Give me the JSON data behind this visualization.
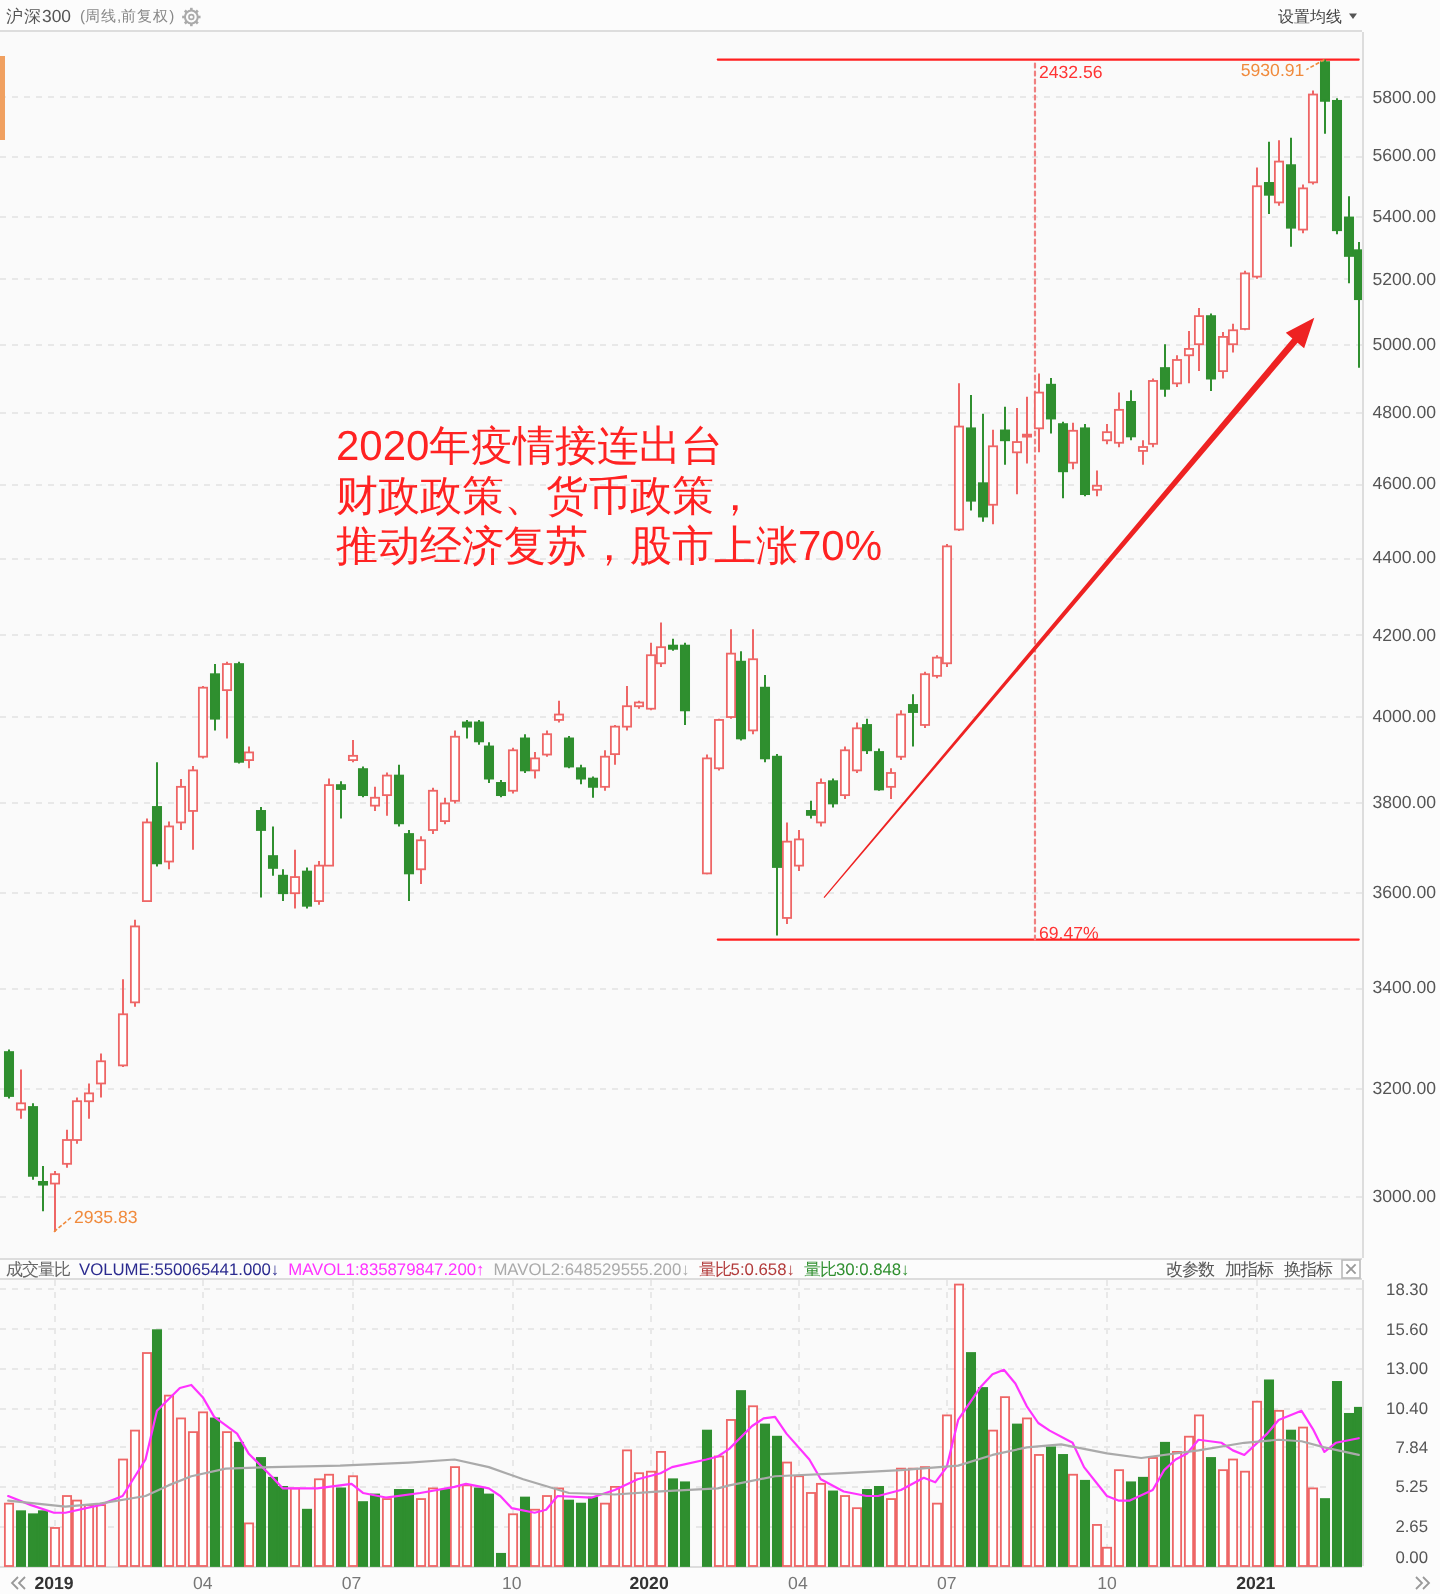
{
  "chart_data": [
    {
      "type": "candlestick",
      "title": "沪深300",
      "subtitle": "(周线,前复权)",
      "x": [
        "2018-12-07",
        "2018-12-14",
        "2018-12-21",
        "2018-12-28",
        "2019-01-04",
        "2019-01-11",
        "2019-01-18",
        "2019-01-25",
        "2019-02-01",
        "2019-02-15",
        "2019-02-22",
        "2019-03-01",
        "2019-03-08",
        "2019-03-15",
        "2019-03-22",
        "2019-03-29",
        "2019-04-05",
        "2019-04-12",
        "2019-04-19",
        "2019-04-26",
        "2019-05-03",
        "2019-05-10",
        "2019-05-17",
        "2019-05-24",
        "2019-05-31",
        "2019-06-07",
        "2019-06-14",
        "2019-06-21",
        "2019-06-28",
        "2019-07-05",
        "2019-07-12",
        "2019-07-19",
        "2019-07-26",
        "2019-08-02",
        "2019-08-09",
        "2019-08-16",
        "2019-08-23",
        "2019-08-30",
        "2019-09-06",
        "2019-09-13",
        "2019-09-20",
        "2019-09-27",
        "2019-10-04",
        "2019-10-11",
        "2019-10-18",
        "2019-10-25",
        "2019-11-01",
        "2019-11-08",
        "2019-11-15",
        "2019-11-22",
        "2019-11-29",
        "2019-12-06",
        "2019-12-13",
        "2019-12-20",
        "2019-12-27",
        "2020-01-03",
        "2020-01-10",
        "2020-01-17",
        "2020-01-24",
        "2020-02-07",
        "2020-02-14",
        "2020-02-21",
        "2020-02-28",
        "2020-03-06",
        "2020-03-13",
        "2020-03-20",
        "2020-03-27",
        "2020-04-03",
        "2020-04-10",
        "2020-04-17",
        "2020-04-24",
        "2020-05-01",
        "2020-05-08",
        "2020-05-15",
        "2020-05-22",
        "2020-05-29",
        "2020-06-05",
        "2020-06-12",
        "2020-06-19",
        "2020-06-26",
        "2020-07-03",
        "2020-07-10",
        "2020-07-17",
        "2020-07-24",
        "2020-07-31",
        "2020-08-07",
        "2020-08-14",
        "2020-08-21",
        "2020-08-28",
        "2020-09-04",
        "2020-09-11",
        "2020-09-18",
        "2020-09-25",
        "2020-10-02",
        "2020-10-09",
        "2020-10-16",
        "2020-10-23",
        "2020-10-30",
        "2020-11-06",
        "2020-11-13",
        "2020-11-20",
        "2020-11-27",
        "2020-12-04",
        "2020-12-11",
        "2020-12-18",
        "2020-12-25",
        "2021-01-01",
        "2021-01-08",
        "2021-01-15",
        "2021-01-22",
        "2021-01-29",
        "2021-02-05",
        "2021-02-12",
        "2021-02-19",
        "2021-02-26",
        "2021-03-05",
        "2021-03-12"
      ],
      "ohlc": [
        [
          3270,
          3275,
          3180,
          3185
        ],
        [
          3159,
          3236,
          3142,
          3171
        ],
        [
          3164,
          3171,
          3029,
          3036
        ],
        [
          3025,
          3054,
          2972,
          3020
        ],
        [
          3022,
          3045,
          2935.83,
          3039
        ],
        [
          3058,
          3121,
          3051,
          3102
        ],
        [
          3102,
          3182,
          3095,
          3175
        ],
        [
          3175,
          3209,
          3142,
          3190
        ],
        [
          3209,
          3267,
          3182,
          3252
        ],
        [
          3244,
          3416,
          3241,
          3345
        ],
        [
          3369,
          3540,
          3360,
          3526
        ],
        [
          3580,
          3762,
          3578,
          3753
        ],
        [
          3788,
          3891,
          3655,
          3662
        ],
        [
          3666,
          3755,
          3649,
          3744
        ],
        [
          3753,
          3852,
          3736,
          3834
        ],
        [
          3779,
          3882,
          3692,
          3872
        ],
        [
          3904,
          4073,
          3900,
          4069
        ],
        [
          4102,
          4127,
          3966,
          3994
        ],
        [
          4063,
          4133,
          3947,
          4127
        ],
        [
          4127,
          4133,
          3888,
          3892
        ],
        [
          3896,
          3928,
          3877,
          3914
        ],
        [
          3779,
          3788,
          3588,
          3736
        ],
        [
          3678,
          3744,
          3635,
          3652
        ],
        [
          3635,
          3649,
          3580,
          3597
        ],
        [
          3597,
          3692,
          3564,
          3632
        ],
        [
          3644,
          3653,
          3564,
          3570
        ],
        [
          3580,
          3667,
          3572,
          3657
        ],
        [
          3657,
          3853,
          3657,
          3838
        ],
        [
          3838,
          3847,
          3762,
          3829
        ],
        [
          3896,
          3943,
          3891,
          3906
        ],
        [
          3875,
          3881,
          3810,
          3815
        ],
        [
          3791,
          3834,
          3779,
          3809
        ],
        [
          3815,
          3867,
          3768,
          3860
        ],
        [
          3860,
          3885,
          3744,
          3751
        ],
        [
          3727,
          3736,
          3580,
          3640
        ],
        [
          3649,
          3722,
          3617,
          3713
        ],
        [
          3736,
          3832,
          3727,
          3825
        ],
        [
          3756,
          3809,
          3749,
          3796
        ],
        [
          3802,
          3966,
          3796,
          3951
        ],
        [
          3985,
          3991,
          3947,
          3975
        ],
        [
          3985,
          3991,
          3932,
          3940
        ],
        [
          3928,
          3938,
          3843,
          3853
        ],
        [
          3843,
          3850,
          3810,
          3815
        ],
        [
          3825,
          3925,
          3819,
          3919
        ],
        [
          3947,
          3957,
          3866,
          3872
        ],
        [
          3872,
          3915,
          3853,
          3900
        ],
        [
          3909,
          3966,
          3904,
          3957
        ],
        [
          3991,
          4037,
          3985,
          4004
        ],
        [
          3947,
          3953,
          3877,
          3881
        ],
        [
          3877,
          3885,
          3840,
          3853
        ],
        [
          3853,
          3858,
          3809,
          3834
        ],
        [
          3834,
          3919,
          3825,
          3904
        ],
        [
          3910,
          3979,
          3885,
          3975
        ],
        [
          3975,
          4073,
          3966,
          4024
        ],
        [
          4024,
          4037,
          4018,
          4033
        ],
        [
          4018,
          4180,
          4014,
          4149
        ],
        [
          4129,
          4231,
          4120,
          4169
        ],
        [
          4173,
          4190,
          4160,
          4165
        ],
        [
          4173,
          4180,
          3979,
          4014
        ],
        [
          3640,
          3909,
          3638,
          3900
        ],
        [
          3877,
          3994,
          3872,
          3991
        ],
        [
          3998,
          4214,
          3994,
          4153
        ],
        [
          4133,
          4159,
          3942,
          3947
        ],
        [
          3966,
          4214,
          3957,
          4139
        ],
        [
          4069,
          4100,
          3891,
          3900
        ],
        [
          3904,
          3910,
          3507,
          3654
        ],
        [
          3544,
          3753,
          3531,
          3710
        ],
        [
          3657,
          3736,
          3645,
          3715
        ],
        [
          3779,
          3802,
          3762,
          3770
        ],
        [
          3753,
          3853,
          3744,
          3843
        ],
        [
          3847,
          3853,
          3787,
          3796
        ],
        [
          3815,
          3928,
          3806,
          3919
        ],
        [
          3872,
          3985,
          3866,
          3971
        ],
        [
          3979,
          3994,
          3910,
          3919
        ],
        [
          3915,
          3923,
          3825,
          3828
        ],
        [
          3834,
          3877,
          3806,
          3866
        ],
        [
          3904,
          4014,
          3896,
          4004
        ],
        [
          4027,
          4053,
          3928,
          4010
        ],
        [
          3979,
          4108,
          3972,
          4102
        ],
        [
          4098,
          4149,
          4092,
          4143
        ],
        [
          4129,
          4435,
          4120,
          4429
        ],
        [
          4474,
          4884,
          4470,
          4759
        ],
        [
          4754,
          4850,
          4525,
          4552
        ],
        [
          4600,
          4796,
          4495,
          4509
        ],
        [
          4541,
          4750,
          4488,
          4703
        ],
        [
          4748,
          4816,
          4651,
          4720
        ],
        [
          4686,
          4812,
          4570,
          4715
        ],
        [
          4736,
          4845,
          4655,
          4736
        ],
        [
          4754,
          4913,
          4686,
          4857
        ],
        [
          4880,
          4900,
          4739,
          4782
        ],
        [
          4766,
          4773,
          4559,
          4633
        ],
        [
          4657,
          4770,
          4639,
          4747
        ],
        [
          4754,
          4766,
          4564,
          4570
        ],
        [
          4582,
          4635,
          4564,
          4593
        ],
        [
          4720,
          4766,
          4709,
          4743
        ],
        [
          4713,
          4857,
          4700,
          4807
        ],
        [
          4830,
          4864,
          4720,
          4731
        ],
        [
          4690,
          4720,
          4651,
          4701
        ],
        [
          4710,
          4898,
          4700,
          4891
        ],
        [
          4929,
          5000,
          4845,
          4868
        ],
        [
          4884,
          4967,
          4873,
          4953
        ],
        [
          4967,
          5040,
          4884,
          4986
        ],
        [
          5000,
          5110,
          4920,
          5085
        ],
        [
          5085,
          5093,
          4862,
          4898
        ],
        [
          4920,
          5037,
          4898,
          5022
        ],
        [
          5000,
          5062,
          4975,
          5042
        ],
        [
          5046,
          5225,
          5042,
          5217
        ],
        [
          5207,
          5559,
          5200,
          5497
        ],
        [
          5508,
          5646,
          5406,
          5469
        ],
        [
          5444,
          5651,
          5433,
          5579
        ],
        [
          5567,
          5659,
          5301,
          5362
        ],
        [
          5356,
          5503,
          5344,
          5490
        ],
        [
          5510,
          5822,
          5503,
          5808
        ],
        [
          5922,
          5930.91,
          5673,
          5786
        ],
        [
          5786,
          5795,
          5341,
          5354
        ],
        [
          5395,
          5464,
          5186,
          5272
        ],
        [
          5290,
          5316,
          4930,
          5137
        ]
      ],
      "colors": [
        "#2f8f2f",
        "#ee6666",
        "#2f8f2f",
        "#2f8f2f",
        "#ee6666",
        "#ee6666",
        "#ee6666",
        "#ee6666",
        "#ee6666",
        "#ee6666",
        "#ee6666",
        "#ee6666",
        "#2f8f2f",
        "#ee6666",
        "#ee6666",
        "#ee6666",
        "#ee6666",
        "#2f8f2f",
        "#ee6666",
        "#2f8f2f",
        "#ee6666",
        "#2f8f2f",
        "#2f8f2f",
        "#2f8f2f",
        "#ee6666",
        "#2f8f2f",
        "#ee6666",
        "#ee6666",
        "#2f8f2f",
        "#ee6666",
        "#2f8f2f",
        "#ee6666",
        "#ee6666",
        "#2f8f2f",
        "#2f8f2f",
        "#ee6666",
        "#ee6666",
        "#ee6666",
        "#ee6666",
        "#2f8f2f",
        "#2f8f2f",
        "#2f8f2f",
        "#2f8f2f",
        "#ee6666",
        "#2f8f2f",
        "#ee6666",
        "#ee6666",
        "#ee6666",
        "#2f8f2f",
        "#2f8f2f",
        "#2f8f2f",
        "#ee6666",
        "#ee6666",
        "#ee6666",
        "#ee6666",
        "#ee6666",
        "#ee6666",
        "#2f8f2f",
        "#2f8f2f",
        "#ee6666",
        "#ee6666",
        "#ee6666",
        "#2f8f2f",
        "#ee6666",
        "#2f8f2f",
        "#2f8f2f",
        "#ee6666",
        "#ee6666",
        "#2f8f2f",
        "#ee6666",
        "#2f8f2f",
        "#ee6666",
        "#ee6666",
        "#2f8f2f",
        "#2f8f2f",
        "#ee6666",
        "#ee6666",
        "#2f8f2f",
        "#ee6666",
        "#ee6666",
        "#ee6666",
        "#ee6666",
        "#2f8f2f",
        "#2f8f2f",
        "#ee6666",
        "#2f8f2f",
        "#ee6666",
        "#ee6666",
        "#ee6666",
        "#2f8f2f",
        "#2f8f2f",
        "#ee6666",
        "#2f8f2f",
        "#ee6666",
        "#ee6666",
        "#ee6666",
        "#2f8f2f",
        "#ee6666",
        "#ee6666",
        "#2f8f2f",
        "#ee6666",
        "#ee6666",
        "#ee6666",
        "#2f8f2f",
        "#ee6666",
        "#ee6666",
        "#ee6666",
        "#ee6666",
        "#2f8f2f",
        "#ee6666",
        "#2f8f2f",
        "#ee6666",
        "#ee6666",
        "#2f8f2f",
        "#2f8f2f",
        "#2f8f2f",
        "#2f8f2f"
      ],
      "series": [
        {
          "type": "line",
          "color": "#ff2020",
          "x": [
            "2020-02-14",
            "2021-03-12"
          ],
          "values": [
            5930.91,
            5930.91
          ]
        },
        {
          "type": "line",
          "color": "#ff2020",
          "x": [
            "2020-02-14",
            "2021-03-12"
          ],
          "values": [
            3498.35,
            3498.35
          ]
        },
        {
          "type": "line",
          "color": "#f08080",
          "line_style": "dotted",
          "x": [
            "2020-08-26",
            "2020-08-26"
          ],
          "values": [
            3498.35,
            5930.91
          ]
        }
      ],
      "annotations": [
        "设置均线",
        "2020年疫情接连出台",
        "财政政策、货币政策，",
        "推动经济复苏，股市上涨70%",
        {
          "text": "2935.83",
          "x": "2019-01-04",
          "y": 2935.83
        },
        {
          "text": "5930.91",
          "x": "2021-02-19",
          "y": 5930.91
        },
        {
          "text": "2432.56",
          "x": "2020-08-26",
          "y": 5930.91
        },
        {
          "text": "69.47%",
          "x": "2020-08-26",
          "y": 3498.35
        }
      ],
      "log": true,
      "xlim": [
        "2018-12-02",
        "2021-03-14"
      ],
      "ylim": [
        2890,
        6030
      ],
      "yticks": [
        {
          "value": 3000,
          "label": "3000.00"
        },
        {
          "value": 3200,
          "label": "3200.00"
        },
        {
          "value": 3400,
          "label": "3400.00"
        },
        {
          "value": 3600,
          "label": "3600.00"
        },
        {
          "value": 3800,
          "label": "3800.00"
        },
        {
          "value": 4000,
          "label": "4000.00"
        },
        {
          "value": 4200,
          "label": "4200.00"
        },
        {
          "value": 4400,
          "label": "4400.00"
        },
        {
          "value": 4600,
          "label": "4600.00"
        },
        {
          "value": 4800,
          "label": "4800.00"
        },
        {
          "value": 5000,
          "label": "5000.00"
        },
        {
          "value": 5200,
          "label": "5200.00"
        },
        {
          "value": 5400,
          "label": "5400.00"
        },
        {
          "value": 5600,
          "label": "5600.00"
        },
        {
          "value": 5800,
          "label": "5800.00"
        }
      ],
      "grid": "y",
      "tick_labels": "y"
    },
    {
      "type": "bar",
      "title": "成交量比",
      "x": [
        "2018-12-07",
        "2018-12-14",
        "2018-12-21",
        "2018-12-28",
        "2019-01-04",
        "2019-01-11",
        "2019-01-18",
        "2019-01-25",
        "2019-02-01",
        "2019-02-15",
        "2019-02-22",
        "2019-03-01",
        "2019-03-08",
        "2019-03-15",
        "2019-03-22",
        "2019-03-29",
        "2019-04-05",
        "2019-04-12",
        "2019-04-19",
        "2019-04-26",
        "2019-05-03",
        "2019-05-10",
        "2019-05-17",
        "2019-05-24",
        "2019-05-31",
        "2019-06-07",
        "2019-06-14",
        "2019-06-21",
        "2019-06-28",
        "2019-07-05",
        "2019-07-12",
        "2019-07-19",
        "2019-07-26",
        "2019-08-02",
        "2019-08-09",
        "2019-08-16",
        "2019-08-23",
        "2019-08-30",
        "2019-09-06",
        "2019-09-13",
        "2019-09-20",
        "2019-09-27",
        "2019-10-04",
        "2019-10-11",
        "2019-10-18",
        "2019-10-25",
        "2019-11-01",
        "2019-11-08",
        "2019-11-15",
        "2019-11-22",
        "2019-11-29",
        "2019-12-06",
        "2019-12-13",
        "2019-12-20",
        "2019-12-27",
        "2020-01-03",
        "2020-01-10",
        "2020-01-17",
        "2020-01-24",
        "2020-02-07",
        "2020-02-14",
        "2020-02-21",
        "2020-02-28",
        "2020-03-06",
        "2020-03-13",
        "2020-03-20",
        "2020-03-27",
        "2020-04-03",
        "2020-04-10",
        "2020-04-17",
        "2020-04-24",
        "2020-05-01",
        "2020-05-08",
        "2020-05-15",
        "2020-05-22",
        "2020-05-29",
        "2020-06-05",
        "2020-06-12",
        "2020-06-19",
        "2020-06-26",
        "2020-07-03",
        "2020-07-10",
        "2020-07-17",
        "2020-07-24",
        "2020-07-31",
        "2020-08-07",
        "2020-08-14",
        "2020-08-21",
        "2020-08-28",
        "2020-09-04",
        "2020-09-11",
        "2020-09-18",
        "2020-09-25",
        "2020-10-02",
        "2020-10-09",
        "2020-10-16",
        "2020-10-23",
        "2020-10-30",
        "2020-11-06",
        "2020-11-13",
        "2020-11-20",
        "2020-11-27",
        "2020-12-04",
        "2020-12-11",
        "2020-12-18",
        "2020-12-25",
        "2021-01-01",
        "2021-01-08",
        "2021-01-15",
        "2021-01-22",
        "2021-01-29",
        "2021-02-05",
        "2021-02-12",
        "2021-02-19",
        "2021-02-26",
        "2021-03-05",
        "2021-03-12"
      ],
      "series": [
        {
          "values": [
            4.1,
            3.6,
            3.4,
            3.6,
            2.5,
            4.6,
            4.3,
            4.0,
            4.0,
            7.0,
            8.9,
            14.0,
            15.5,
            11.2,
            9.7,
            8.8,
            10.1,
            9.7,
            8.8,
            8.1,
            2.8,
            7.1,
            5.8,
            5.2,
            5.1,
            3.7,
            5.7,
            6.0,
            5.1,
            5.9,
            4.2,
            4.7,
            4.4,
            5.0,
            5.0,
            4.4,
            5.1,
            5.0,
            6.5,
            5.3,
            5.1,
            4.7,
            0.8,
            3.4,
            4.5,
            3.7,
            4.6,
            5.1,
            4.3,
            4.1,
            4.5,
            4.1,
            5.2,
            7.6,
            6.1,
            6.2,
            7.5,
            5.7,
            5.5,
            8.9,
            7.2,
            9.6,
            11.5,
            10.5,
            9.3,
            8.5,
            6.8,
            5.9,
            4.8,
            5.4,
            4.9,
            4.6,
            3.8,
            5.0,
            5.2,
            4.4,
            6.4,
            6.4,
            6.5,
            4.1,
            9.9,
            18.5,
            14.0,
            11.7,
            8.9,
            11.1,
            9.3,
            9.7,
            7.3,
            7.8,
            7.3,
            6.0,
            5.6,
            2.7,
            1.2,
            6.3,
            5.5,
            5.8,
            7.1,
            8.1,
            7.5,
            8.5,
            9.9,
            7.1,
            6.3,
            7.0,
            6.2,
            10.8,
            12.2,
            10.2,
            8.9,
            9.1,
            5.1,
            4.4,
            12.1,
            10.0,
            10.4
          ],
          "colors": [
            "#ee6666",
            "#2f8f2f",
            "#2f8f2f",
            "#2f8f2f",
            "#ee6666",
            "#ee6666",
            "#ee6666",
            "#ee6666",
            "#ee6666",
            "#ee6666",
            "#ee6666",
            "#ee6666",
            "#2f8f2f",
            "#ee6666",
            "#ee6666",
            "#ee6666",
            "#ee6666",
            "#2f8f2f",
            "#ee6666",
            "#2f8f2f",
            "#ee6666",
            "#2f8f2f",
            "#2f8f2f",
            "#2f8f2f",
            "#ee6666",
            "#2f8f2f",
            "#ee6666",
            "#ee6666",
            "#2f8f2f",
            "#ee6666",
            "#2f8f2f",
            "#2f8f2f",
            "#ee6666",
            "#2f8f2f",
            "#2f8f2f",
            "#ee6666",
            "#ee6666",
            "#2f8f2f",
            "#ee6666",
            "#ee6666",
            "#2f8f2f",
            "#2f8f2f",
            "#2f8f2f",
            "#ee6666",
            "#2f8f2f",
            "#ee6666",
            "#ee6666",
            "#ee6666",
            "#2f8f2f",
            "#2f8f2f",
            "#2f8f2f",
            "#ee6666",
            "#ee6666",
            "#ee6666",
            "#ee6666",
            "#ee6666",
            "#ee6666",
            "#2f8f2f",
            "#2f8f2f",
            "#2f8f2f",
            "#ee6666",
            "#ee6666",
            "#2f8f2f",
            "#ee6666",
            "#2f8f2f",
            "#2f8f2f",
            "#ee6666",
            "#ee6666",
            "#ee6666",
            "#ee6666",
            "#2f8f2f",
            "#ee6666",
            "#ee6666",
            "#2f8f2f",
            "#2f8f2f",
            "#ee6666",
            "#ee6666",
            "#ee6666",
            "#ee6666",
            "#ee6666",
            "#ee6666",
            "#ee6666",
            "#2f8f2f",
            "#2f8f2f",
            "#ee6666",
            "#ee6666",
            "#2f8f2f",
            "#ee6666",
            "#ee6666",
            "#2f8f2f",
            "#2f8f2f",
            "#ee6666",
            "#2f8f2f",
            "#ee6666",
            "#ee6666",
            "#ee6666",
            "#2f8f2f",
            "#2f8f2f",
            "#ee6666",
            "#2f8f2f",
            "#ee6666",
            "#ee6666",
            "#ee6666",
            "#2f8f2f",
            "#ee6666",
            "#ee6666",
            "#ee6666",
            "#ee6666",
            "#2f8f2f",
            "#ee6666",
            "#2f8f2f",
            "#ee6666",
            "#ee6666",
            "#2f8f2f",
            "#2f8f2f",
            "#2f8f2f",
            "#2f8f2f"
          ]
        },
        {
          "type": "line",
          "name": "MAVOL1:835879847.200↑",
          "color": "#ff33ff",
          "x": [
            "2018-12-07",
            "2018-12-21",
            "2019-01-04",
            "2019-01-11",
            "2019-02-01",
            "2019-02-15",
            "2019-03-01",
            "2019-03-08",
            "2019-03-22",
            "2019-03-29",
            "2019-04-05",
            "2019-04-12",
            "2019-04-26",
            "2019-05-03",
            "2019-05-17",
            "2019-05-24",
            "2019-06-14",
            "2019-07-05",
            "2019-07-12",
            "2019-07-26",
            "2019-08-16",
            "2019-09-06",
            "2019-09-13",
            "2019-09-27",
            "2019-10-04",
            "2019-10-11",
            "2019-10-25",
            "2019-11-01",
            "2019-11-08",
            "2019-11-29",
            "2019-12-13",
            "2019-12-27",
            "2020-01-10",
            "2020-01-17",
            "2020-02-07",
            "2020-02-14",
            "2020-02-21",
            "2020-03-06",
            "2020-03-13",
            "2020-03-20",
            "2020-03-27",
            "2020-04-10",
            "2020-04-17",
            "2020-05-01",
            "2020-05-15",
            "2020-05-22",
            "2020-06-05",
            "2020-06-19",
            "2020-06-26",
            "2020-07-03",
            "2020-07-10",
            "2020-07-24",
            "2020-07-31",
            "2020-08-07",
            "2020-08-14",
            "2020-08-21",
            "2020-08-28",
            "2020-09-04",
            "2020-09-18",
            "2020-09-25",
            "2020-10-09",
            "2020-10-16",
            "2020-10-23",
            "2020-11-06",
            "2020-11-13",
            "2020-11-20",
            "2020-11-27",
            "2020-12-04",
            "2020-12-18",
            "2020-12-25",
            "2021-01-01",
            "2021-01-15",
            "2021-01-22",
            "2021-02-05",
            "2021-02-12",
            "2021-02-19",
            "2021-02-26",
            "2021-03-12"
          ],
          "values": [
            4.6,
            4.0,
            3.5,
            3.5,
            4.0,
            4.6,
            7.0,
            10.2,
            11.7,
            11.9,
            11.1,
            9.8,
            8.7,
            7.4,
            5.9,
            5.1,
            5.1,
            5.4,
            4.8,
            4.5,
            4.8,
            5.2,
            5.4,
            5.1,
            4.6,
            3.8,
            3.5,
            3.7,
            4.6,
            4.5,
            5.0,
            5.7,
            6.1,
            6.5,
            7.0,
            7.2,
            7.7,
            9.2,
            9.7,
            9.8,
            8.7,
            7.0,
            5.7,
            4.9,
            4.6,
            4.6,
            5.0,
            5.8,
            5.5,
            6.5,
            9.6,
            11.8,
            12.6,
            12.9,
            12.0,
            10.5,
            9.4,
            8.9,
            8.1,
            6.5,
            4.6,
            4.3,
            4.3,
            5.0,
            6.3,
            7.0,
            7.4,
            8.3,
            8.1,
            7.6,
            7.3,
            8.7,
            9.6,
            10.2,
            9.0,
            7.5,
            8.1,
            8.4
          ]
        },
        {
          "type": "line",
          "name": "MAVOL2:648529555.200↓",
          "color": "#aaaaaa",
          "x": [
            "2018-12-07",
            "2019-01-11",
            "2019-02-01",
            "2019-03-01",
            "2019-03-15",
            "2019-03-29",
            "2019-04-19",
            "2019-05-17",
            "2019-06-28",
            "2019-08-09",
            "2019-09-06",
            "2019-09-27",
            "2019-10-18",
            "2019-11-15",
            "2019-12-13",
            "2020-01-10",
            "2020-02-14",
            "2020-02-21",
            "2020-03-20",
            "2020-05-01",
            "2020-06-05",
            "2020-07-10",
            "2020-07-31",
            "2020-08-21",
            "2020-09-11",
            "2020-10-09",
            "2020-10-30",
            "2020-12-04",
            "2021-01-01",
            "2021-01-22",
            "2021-02-05",
            "2021-02-19",
            "2021-03-12"
          ],
          "values": [
            4.3,
            3.9,
            4.1,
            4.6,
            5.3,
            5.9,
            6.4,
            6.5,
            6.6,
            6.8,
            7.0,
            6.5,
            5.7,
            4.8,
            4.7,
            4.9,
            5.1,
            5.3,
            5.9,
            6.1,
            6.3,
            6.6,
            7.3,
            7.8,
            8.0,
            7.4,
            7.1,
            7.6,
            8.1,
            8.3,
            8.2,
            7.8,
            7.3
          ]
        }
      ],
      "annotations": [
        "VOLUME:550065441.000↓",
        "量比5:0.658↓",
        "量比30:0.848↓",
        "改参数",
        "加指标",
        "换指标"
      ],
      "xlim": [
        "2018-12-02",
        "2021-03-14"
      ],
      "xticks": [
        {
          "value": "2019-01-04",
          "label": "2019"
        },
        {
          "value": "2019-04-05",
          "label": "04"
        },
        {
          "value": "2019-07-05",
          "label": "07"
        },
        {
          "value": "2019-10-11",
          "label": "10"
        },
        {
          "value": "2020-01-03",
          "label": "2020"
        },
        {
          "value": "2020-04-03",
          "label": "04"
        },
        {
          "value": "2020-07-03",
          "label": "07"
        },
        {
          "value": "2020-10-09",
          "label": "10"
        },
        {
          "value": "2021-01-08",
          "label": "2021"
        }
      ],
      "ylim": [
        0,
        18.8
      ],
      "yticks": [
        {
          "value": 0,
          "label": "0.00"
        },
        2.65,
        5.25,
        7.84,
        {
          "value": 10.4,
          "label": "10.40"
        },
        {
          "value": 13,
          "label": "13.00"
        },
        {
          "value": 15.6,
          "label": "15.60"
        },
        {
          "value": 18.3,
          "label": "18.30"
        }
      ],
      "grid": true,
      "legend": "top left"
    }
  ]
}
